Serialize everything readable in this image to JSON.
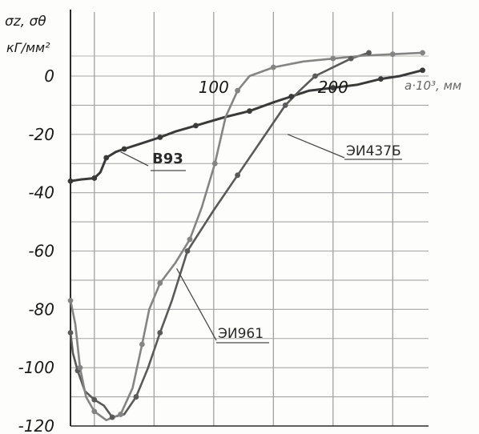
{
  "chart_data": {
    "type": "line",
    "ylabel": "σz, σθ",
    "yunit": "кГ/мм²",
    "xlabel": "a·10³, мм",
    "xlim": [
      -20,
      280
    ],
    "ylim": [
      -120,
      8
    ],
    "xticks": [
      100,
      200
    ],
    "yticks": [
      0,
      -20,
      -40,
      -60,
      -80,
      -100,
      -120
    ],
    "grid": true,
    "series": [
      {
        "name": "В93",
        "color": "#3a3a3a",
        "label_bold": true,
        "points": [
          [
            -20,
            -36
          ],
          [
            -12,
            -35.5
          ],
          [
            0,
            -35
          ],
          [
            5,
            -33
          ],
          [
            10,
            -28
          ],
          [
            18,
            -26
          ],
          [
            25,
            -25
          ],
          [
            40,
            -23
          ],
          [
            55,
            -21
          ],
          [
            68,
            -19
          ],
          [
            85,
            -17
          ],
          [
            110,
            -14
          ],
          [
            130,
            -12
          ],
          [
            150,
            -9
          ],
          [
            165,
            -7
          ],
          [
            180,
            -5
          ],
          [
            200,
            -4
          ],
          [
            220,
            -3
          ],
          [
            240,
            -1
          ],
          [
            256,
            0
          ],
          [
            275,
            2
          ]
        ]
      },
      {
        "name": "ЭИ437Б",
        "color": "#5a5a5a",
        "label_bold": false,
        "points": [
          [
            -20,
            -88
          ],
          [
            -18,
            -95
          ],
          [
            -14,
            -101
          ],
          [
            -8,
            -108
          ],
          [
            0,
            -111
          ],
          [
            8,
            -113
          ],
          [
            15,
            -117
          ],
          [
            25,
            -116
          ],
          [
            35,
            -110
          ],
          [
            45,
            -100
          ],
          [
            55,
            -88
          ],
          [
            65,
            -77
          ],
          [
            78,
            -60
          ],
          [
            100,
            -46
          ],
          [
            120,
            -34
          ],
          [
            140,
            -22
          ],
          [
            160,
            -10
          ],
          [
            172,
            -5
          ],
          [
            185,
            0
          ],
          [
            200,
            3
          ],
          [
            215,
            6
          ],
          [
            230,
            8
          ]
        ]
      },
      {
        "name": "ЭИ961",
        "color": "#848484",
        "label_bold": false,
        "points": [
          [
            -20,
            -77
          ],
          [
            -16,
            -85
          ],
          [
            -12,
            -100
          ],
          [
            -7,
            -110
          ],
          [
            0,
            -115
          ],
          [
            10,
            -118
          ],
          [
            22,
            -116
          ],
          [
            32,
            -107
          ],
          [
            40,
            -92
          ],
          [
            46,
            -80
          ],
          [
            55,
            -71
          ],
          [
            68,
            -64
          ],
          [
            80,
            -56
          ],
          [
            90,
            -45
          ],
          [
            101,
            -30
          ],
          [
            110,
            -14
          ],
          [
            120,
            -5
          ],
          [
            130,
            0
          ],
          [
            150,
            3
          ],
          [
            175,
            5
          ],
          [
            200,
            6
          ],
          [
            225,
            7
          ],
          [
            250,
            7.5
          ],
          [
            275,
            8
          ]
        ]
      }
    ]
  }
}
